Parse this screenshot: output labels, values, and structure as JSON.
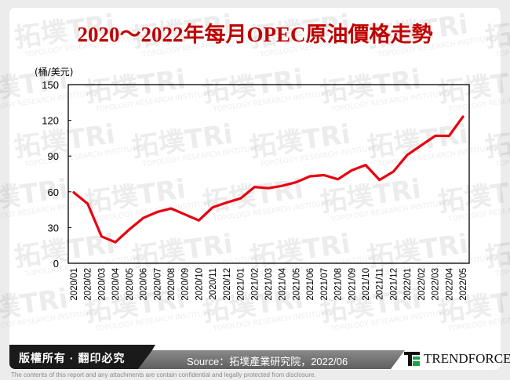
{
  "title": "2020～2022年每月OPEC原油價格走勢",
  "watermark": {
    "cn": "拓墣",
    "en": "TRi",
    "sub": "TOPOLOGY RESEARCH INSTITUTE"
  },
  "footer": {
    "copyright": "版權所有 · 翻印必究",
    "source": "Source：拓墣產業研究院，2022/06",
    "logo": "TRENDFORCE",
    "disclaimer": "The contents of this report and any attachments are contain confidential and legally protected from disclosure."
  },
  "colors": {
    "line": "#e8000f",
    "title": "#c00000"
  },
  "chart_data": {
    "type": "line",
    "title": "2020～2022年每月OPEC原油價格走勢",
    "ylabel": "(桶/美元)",
    "xlabel": "",
    "ylim": [
      0,
      150
    ],
    "yticks": [
      0,
      30,
      60,
      90,
      120,
      150
    ],
    "grid": false,
    "legend": "none",
    "categories": [
      "2020/01",
      "2020/02",
      "2020/03",
      "2020/04",
      "2020/05",
      "2020/06",
      "2020/07",
      "2020/08",
      "2020/09",
      "2020/10",
      "2020/11",
      "2020/12",
      "2021/01",
      "2021/02",
      "2021/03",
      "2021/04",
      "2021/05",
      "2021/06",
      "2021/07",
      "2021/08",
      "2021/09",
      "2021/10",
      "2021/11",
      "2021/12",
      "2022/01",
      "2022/02",
      "2022/03",
      "2022/04",
      "2022/05"
    ],
    "series": [
      {
        "name": "OPEC原油價格",
        "values": [
          59.5,
          50,
          22.5,
          17.7,
          28.5,
          38,
          43,
          46,
          41,
          36,
          47,
          51,
          54.5,
          64,
          63,
          65,
          68,
          73,
          74,
          70.5,
          78,
          82.5,
          70,
          77,
          91,
          99,
          107,
          107,
          123
        ]
      }
    ]
  }
}
